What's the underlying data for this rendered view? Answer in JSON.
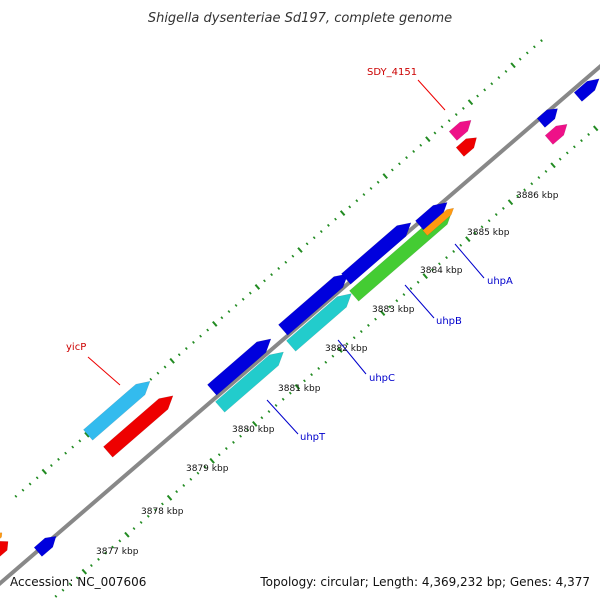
{
  "title": "Shigella dysenteriae Sd197, complete genome",
  "footer": {
    "accession": "Accession: NC_007606",
    "summary": "Topology: circular; Length: 4,369,232 bp; Genes: 4,377"
  },
  "kbp_labels": [
    "3886 kbp",
    "3885 kbp",
    "3884 kbp",
    "3883 kbp",
    "3882 kbp",
    "3881 kbp",
    "3880 kbp",
    "3879 kbp",
    "3878 kbp",
    "3877 kbp"
  ],
  "gene_labels": [
    {
      "text": "SDY_4151",
      "color": "#cc0000"
    },
    {
      "text": "yicP",
      "color": "#cc0000"
    },
    {
      "text": "uhpA",
      "color": "#0000cc"
    },
    {
      "text": "uhpB",
      "color": "#0000cc"
    },
    {
      "text": "uhpC",
      "color": "#0000cc"
    },
    {
      "text": "uhpT",
      "color": "#0000cc"
    }
  ],
  "colors": {
    "backbone": "#888888",
    "ticks": "#228b22",
    "blue": "#0000dd",
    "red": "#ee0000",
    "magenta": "#ee1188",
    "cyan": "#22cccc",
    "skyblue": "#33bbee",
    "green": "#44cc33",
    "orange": "#ff9911",
    "label_line_red": "#ee0000",
    "label_line_blue": "#0000cc"
  }
}
